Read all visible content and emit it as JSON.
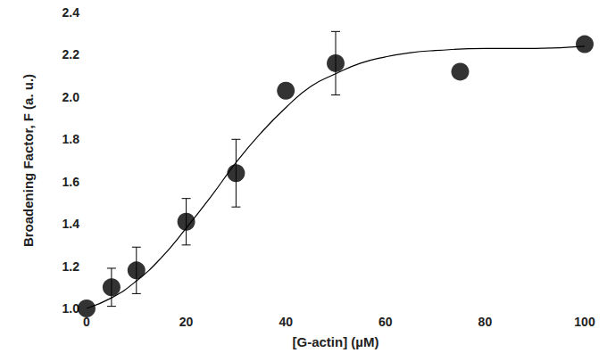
{
  "chart_data": {
    "type": "scatter",
    "x_label": "[G-actin] (µM)",
    "y_label": "Broadening Factor, F (a. u.)",
    "xlim": [
      0,
      100
    ],
    "xticks": [
      0,
      20,
      40,
      60,
      80,
      100
    ],
    "ylim": [
      1.0,
      2.4
    ],
    "yticks": [
      {
        "value": 1.0,
        "label": "1.0"
      },
      {
        "value": 1.2,
        "label": "1.2"
      },
      {
        "value": 1.4,
        "label": "1.4"
      },
      {
        "value": 1.6,
        "label": "1.6"
      },
      {
        "value": 1.8,
        "label": "1.8"
      },
      {
        "value": 2.0,
        "label": "2.0"
      },
      {
        "value": 2.2,
        "label": "2.2"
      },
      {
        "value": 2.4,
        "label": "2.4"
      }
    ],
    "grid": false,
    "series": [
      {
        "type": "scatter",
        "marker": "circle",
        "color": "#000000",
        "x": [
          0,
          5,
          10,
          20,
          30,
          40,
          50,
          75,
          100
        ],
        "values": [
          1.0,
          1.1,
          1.18,
          1.41,
          1.64,
          2.03,
          2.16,
          2.12,
          2.25
        ],
        "errors": [
          null,
          0.09,
          0.11,
          0.11,
          0.16,
          null,
          0.15,
          null,
          null
        ]
      },
      {
        "type": "line",
        "line_style": "solid",
        "color": "#000000",
        "x": [
          0,
          5,
          10,
          15,
          20,
          25,
          30,
          35,
          40,
          45,
          50,
          55,
          60,
          65,
          70,
          80,
          90,
          100
        ],
        "values": [
          1.0,
          1.05,
          1.13,
          1.24,
          1.38,
          1.53,
          1.69,
          1.83,
          1.95,
          2.05,
          2.11,
          2.16,
          2.19,
          2.21,
          2.22,
          2.23,
          2.23,
          2.24
        ]
      }
    ]
  }
}
